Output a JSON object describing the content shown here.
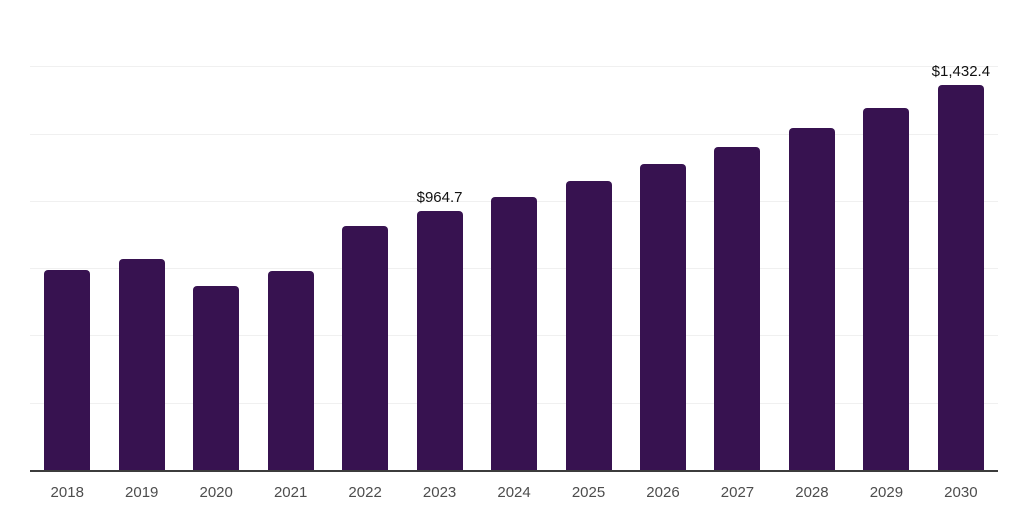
{
  "chart_data": {
    "type": "bar",
    "title": "",
    "xlabel": "",
    "ylabel": "",
    "categories": [
      "2018",
      "2019",
      "2020",
      "2021",
      "2022",
      "2023",
      "2024",
      "2025",
      "2026",
      "2027",
      "2028",
      "2029",
      "2030"
    ],
    "values": [
      747,
      788,
      687,
      743,
      910,
      964.7,
      1018,
      1077,
      1141,
      1204,
      1274,
      1349,
      1432.4
    ],
    "value_labels": [
      "",
      "",
      "",
      "",
      "",
      "$964.7",
      "",
      "",
      "",
      "",
      "",
      "",
      "$1,432.4"
    ],
    "ylim": [
      0,
      1750
    ],
    "gridline_step": 250,
    "grid": true,
    "legend": false
  },
  "theme": {
    "background": "#ffffff",
    "bar_color": "#371250",
    "gridline_color": "#f0f0f0",
    "axis_line_color": "#3c3c3c",
    "x_label_color": "#4d4d4d",
    "value_label_color": "#111111"
  }
}
